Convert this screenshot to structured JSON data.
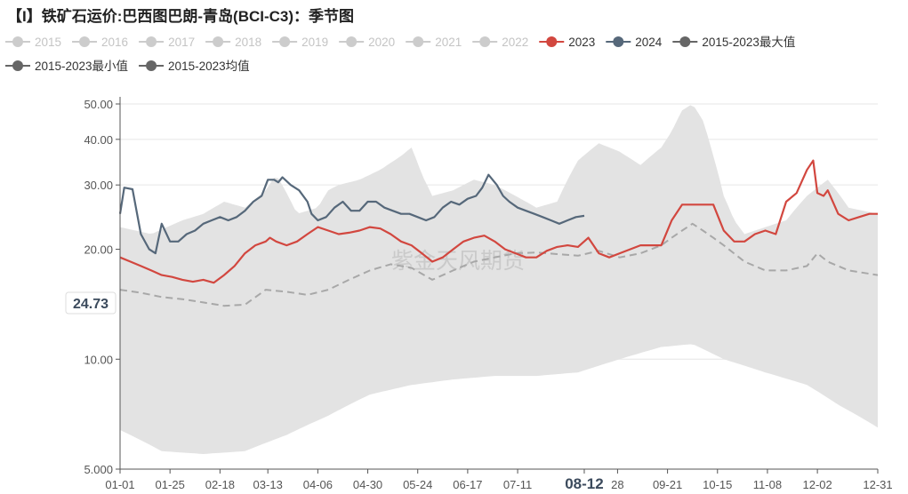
{
  "title": "【I】铁矿石运价:巴西图巴朗-青岛(BCI-C3)：季节图",
  "watermark": "紫金天风期货",
  "cursor": {
    "x_label": "08-12",
    "y_label": "24.73"
  },
  "colors": {
    "inactive": "#cccccc",
    "s2023": "#d2473f",
    "s2024": "#56687a",
    "min": "#666666",
    "max": "#666666",
    "avg": "#666666",
    "band": "#e3e3e3",
    "avg_line": "#a8a8a8"
  },
  "chart_data": {
    "type": "line",
    "title": "【I】铁矿石运价:巴西图巴朗-青岛(BCI-C3)：季节图",
    "y_scale": "log",
    "ylim": [
      5,
      50
    ],
    "y_ticks": [
      "5.000",
      "10.00",
      "20.00",
      "30.00",
      "40.00",
      "50.00"
    ],
    "y_tick_values": [
      5,
      10,
      20,
      30,
      40,
      50
    ],
    "x_ticks": [
      "01-01",
      "01-25",
      "02-18",
      "03-13",
      "04-06",
      "04-30",
      "05-24",
      "06-17",
      "07-11",
      "08-12",
      "28",
      "09-21",
      "10-15",
      "11-08",
      "12-02",
      "12-31"
    ],
    "x_tick_days": [
      0,
      24,
      48,
      71,
      95,
      119,
      143,
      167,
      191,
      223,
      239,
      263,
      287,
      311,
      335,
      364
    ],
    "legend": [
      {
        "name": "2015",
        "state": "inactive"
      },
      {
        "name": "2016",
        "state": "inactive"
      },
      {
        "name": "2017",
        "state": "inactive"
      },
      {
        "name": "2018",
        "state": "inactive"
      },
      {
        "name": "2019",
        "state": "inactive"
      },
      {
        "name": "2020",
        "state": "inactive"
      },
      {
        "name": "2021",
        "state": "inactive"
      },
      {
        "name": "2022",
        "state": "inactive"
      },
      {
        "name": "2023",
        "state": "active"
      },
      {
        "name": "2024",
        "state": "active"
      },
      {
        "name": "2015-2023最大值",
        "state": "active"
      },
      {
        "name": "2015-2023最小值",
        "state": "active"
      },
      {
        "name": "2015-2023均值",
        "state": "active"
      }
    ],
    "series": [
      {
        "name": "2015-2023最大值",
        "kind": "band-upper",
        "day": [
          0,
          15,
          30,
          40,
          50,
          60,
          70,
          75,
          85,
          95,
          100,
          105,
          115,
          125,
          135,
          140,
          145,
          150,
          160,
          170,
          180,
          190,
          200,
          210,
          220,
          230,
          240,
          250,
          260,
          265,
          270,
          275,
          280,
          285,
          290,
          295,
          300,
          310,
          320,
          330,
          340,
          350,
          364
        ],
        "values": [
          23,
          22,
          24,
          25,
          27,
          26,
          29,
          32,
          25,
          26,
          29,
          30,
          31,
          33,
          36,
          38,
          32,
          28,
          29,
          31,
          30,
          28,
          26,
          27,
          35,
          39,
          37,
          34,
          38,
          42,
          48,
          50,
          45,
          36,
          28,
          24,
          22,
          23,
          24,
          28,
          31,
          26,
          25
        ]
      },
      {
        "name": "2015-2023最小值",
        "kind": "band-lower",
        "day": [
          0,
          20,
          40,
          60,
          80,
          100,
          110,
          120,
          140,
          160,
          180,
          200,
          220,
          240,
          260,
          275,
          290,
          310,
          330,
          345,
          364
        ],
        "values": [
          6.4,
          5.6,
          5.5,
          5.6,
          6.2,
          7,
          7.5,
          8,
          8.5,
          8.8,
          9,
          9,
          9.2,
          10,
          10.8,
          11,
          10,
          9.2,
          8.5,
          7.5,
          6.5
        ]
      },
      {
        "name": "2015-2023均值",
        "kind": "dashed",
        "day": [
          0,
          10,
          20,
          30,
          40,
          50,
          60,
          70,
          80,
          90,
          100,
          110,
          120,
          130,
          140,
          150,
          160,
          170,
          180,
          190,
          200,
          210,
          220,
          230,
          240,
          250,
          260,
          265,
          270,
          275,
          280,
          285,
          290,
          300,
          310,
          320,
          330,
          335,
          340,
          350,
          364
        ],
        "values": [
          15.5,
          15.2,
          14.8,
          14.6,
          14.3,
          14.0,
          14.1,
          15.5,
          15.3,
          15.0,
          15.5,
          16.5,
          17.5,
          18.2,
          17.8,
          16.5,
          17.5,
          18.5,
          19.0,
          19.5,
          19.6,
          19.4,
          19.2,
          19.8,
          19.0,
          19.5,
          20.5,
          21.5,
          22.5,
          23.5,
          22.5,
          21.5,
          20.5,
          18.5,
          17.5,
          17.5,
          18.0,
          19.5,
          18.5,
          17.5,
          17.0
        ]
      },
      {
        "name": "2023",
        "kind": "line",
        "day": [
          0,
          5,
          10,
          15,
          20,
          25,
          30,
          35,
          40,
          45,
          50,
          55,
          60,
          65,
          70,
          72,
          75,
          80,
          85,
          90,
          95,
          100,
          105,
          110,
          115,
          120,
          125,
          130,
          135,
          140,
          145,
          150,
          155,
          160,
          165,
          170,
          175,
          180,
          185,
          190,
          195,
          200,
          205,
          210,
          215,
          220,
          225,
          230,
          235,
          240,
          245,
          250,
          255,
          260,
          265,
          270,
          275,
          280,
          285,
          290,
          295,
          300,
          305,
          310,
          315,
          320,
          325,
          330,
          333,
          335,
          338,
          340,
          345,
          350,
          355,
          360,
          364
        ],
        "values": [
          19.0,
          18.5,
          18.0,
          17.5,
          17.0,
          16.8,
          16.5,
          16.3,
          16.5,
          16.2,
          17.0,
          18.0,
          19.5,
          20.5,
          21.0,
          21.5,
          21.0,
          20.5,
          21.0,
          22.0,
          23.0,
          22.5,
          22.0,
          22.2,
          22.5,
          23.0,
          22.8,
          22.0,
          21.0,
          20.5,
          19.5,
          18.5,
          19.0,
          20.0,
          21.0,
          21.5,
          21.8,
          21.0,
          20.0,
          19.5,
          19.0,
          19.0,
          19.8,
          20.3,
          20.5,
          20.3,
          21.5,
          19.5,
          19.0,
          19.5,
          20.0,
          20.5,
          20.5,
          20.5,
          24.0,
          26.5,
          26.5,
          26.5,
          26.5,
          22.5,
          21.0,
          21.0,
          22.0,
          22.5,
          22.0,
          27.0,
          28.5,
          33.0,
          35.0,
          28.5,
          28.0,
          29.0,
          25.0,
          24.0,
          24.5,
          25.0,
          25.0
        ]
      },
      {
        "name": "2024",
        "kind": "line",
        "day": [
          0,
          2,
          6,
          10,
          14,
          17,
          20,
          24,
          28,
          32,
          36,
          40,
          44,
          48,
          52,
          56,
          60,
          64,
          68,
          71,
          74,
          76,
          78,
          82,
          86,
          90,
          92,
          95,
          99,
          103,
          107,
          111,
          115,
          119,
          123,
          127,
          131,
          135,
          139,
          143,
          147,
          151,
          155,
          159,
          163,
          167,
          171,
          174,
          177,
          181,
          184,
          187,
          191,
          195,
          199,
          203,
          207,
          211,
          215,
          219,
          223
        ],
        "values": [
          25,
          29.5,
          29.2,
          22,
          20,
          19.5,
          23.5,
          21,
          21,
          22,
          22.5,
          23.5,
          24,
          24.5,
          24,
          24.5,
          25.5,
          27,
          28,
          31,
          31,
          30.5,
          31.5,
          30,
          29,
          27,
          25,
          24,
          24.5,
          26,
          27,
          25.5,
          25.5,
          27,
          27,
          26,
          25.5,
          25,
          25,
          24.5,
          24,
          24.5,
          26,
          27,
          26.5,
          27.5,
          28,
          29.5,
          32,
          30,
          28,
          27,
          26,
          25.5,
          25,
          24.5,
          24,
          23.5,
          24,
          24.5,
          24.7
        ]
      }
    ]
  }
}
